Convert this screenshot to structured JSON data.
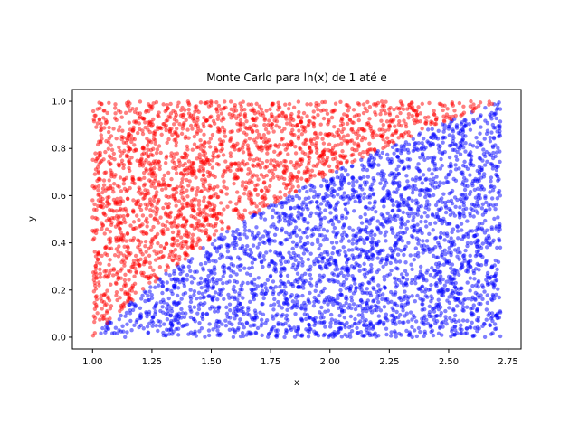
{
  "chart_data": {
    "type": "scatter",
    "title": "Monte Carlo para ln(x) de 1 até e",
    "xlabel": "x",
    "ylabel": "y",
    "xlim": [
      0.915,
      2.805
    ],
    "ylim": [
      -0.05,
      1.05
    ],
    "x_ticks": [
      1.0,
      1.25,
      1.5,
      1.75,
      2.0,
      2.25,
      2.5,
      2.75
    ],
    "x_tick_labels": [
      "1.00",
      "1.25",
      "1.50",
      "1.75",
      "2.00",
      "2.25",
      "2.50",
      "2.75"
    ],
    "y_ticks": [
      0.0,
      0.2,
      0.4,
      0.6,
      0.8,
      1.0
    ],
    "y_tick_labels": [
      "0.0",
      "0.2",
      "0.4",
      "0.6",
      "0.8",
      "1.0"
    ],
    "grid": false,
    "sample_domain": {
      "x": [
        1.0,
        2.718
      ],
      "y": [
        0.0,
        1.0
      ]
    },
    "boundary": "y = ln(x)",
    "series": [
      {
        "rule": "y > ln(x)",
        "color": "#ff0000",
        "alpha": 0.5
      },
      {
        "rule": "y <= ln(x)",
        "color": "#0000ff",
        "alpha": 0.5
      }
    ]
  }
}
